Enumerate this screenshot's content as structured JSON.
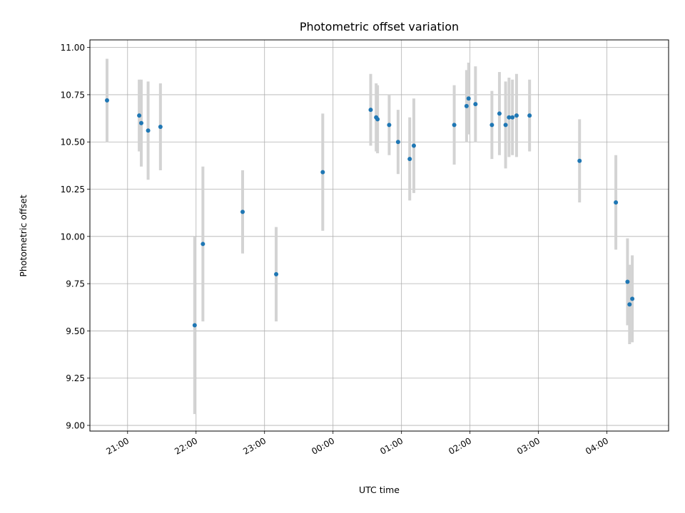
{
  "chart_data": {
    "type": "scatter",
    "title": "Photometric offset variation",
    "xlabel": "UTC time",
    "ylabel": "Photometric offset",
    "x_tick_labels": [
      "21:00",
      "22:00",
      "23:00",
      "00:00",
      "01:00",
      "02:00",
      "03:00",
      "04:00"
    ],
    "y_tick_labels": [
      "9.00",
      "9.25",
      "9.50",
      "9.75",
      "10.00",
      "10.25",
      "10.50",
      "10.75",
      "11.00"
    ],
    "x_axis_type": "time (UTC), x values in hours relative to 00:00 on the same night",
    "xlim": [
      -3.55,
      4.9
    ],
    "ylim": [
      8.97,
      11.04
    ],
    "grid": true,
    "marker_color": "#1f77b4",
    "errorbar_color": "#d3d3d3",
    "points": [
      {
        "x": -3.3,
        "y": 10.72,
        "err": 0.22
      },
      {
        "x": -2.83,
        "y": 10.64,
        "err": 0.19
      },
      {
        "x": -2.8,
        "y": 10.6,
        "err": 0.23
      },
      {
        "x": -2.7,
        "y": 10.56,
        "err": 0.26
      },
      {
        "x": -2.52,
        "y": 10.58,
        "err": 0.23
      },
      {
        "x": -2.02,
        "y": 9.53,
        "err": 0.47
      },
      {
        "x": -1.9,
        "y": 9.96,
        "err": 0.41
      },
      {
        "x": -1.32,
        "y": 10.13,
        "err": 0.22
      },
      {
        "x": -0.83,
        "y": 9.8,
        "err": 0.25
      },
      {
        "x": -0.15,
        "y": 10.34,
        "err": 0.31
      },
      {
        "x": 0.55,
        "y": 10.67,
        "err": 0.19
      },
      {
        "x": 0.63,
        "y": 10.63,
        "err": 0.18
      },
      {
        "x": 0.65,
        "y": 10.62,
        "err": 0.18
      },
      {
        "x": 0.82,
        "y": 10.59,
        "err": 0.16
      },
      {
        "x": 0.95,
        "y": 10.5,
        "err": 0.17
      },
      {
        "x": 1.12,
        "y": 10.41,
        "err": 0.22
      },
      {
        "x": 1.18,
        "y": 10.48,
        "err": 0.25
      },
      {
        "x": 1.77,
        "y": 10.59,
        "err": 0.21
      },
      {
        "x": 1.95,
        "y": 10.69,
        "err": 0.19
      },
      {
        "x": 1.98,
        "y": 10.73,
        "err": 0.19
      },
      {
        "x": 2.08,
        "y": 10.7,
        "err": 0.2
      },
      {
        "x": 2.32,
        "y": 10.59,
        "err": 0.18
      },
      {
        "x": 2.43,
        "y": 10.65,
        "err": 0.22
      },
      {
        "x": 2.52,
        "y": 10.59,
        "err": 0.23
      },
      {
        "x": 2.57,
        "y": 10.63,
        "err": 0.21
      },
      {
        "x": 2.62,
        "y": 10.63,
        "err": 0.2
      },
      {
        "x": 2.68,
        "y": 10.64,
        "err": 0.22
      },
      {
        "x": 2.87,
        "y": 10.64,
        "err": 0.19
      },
      {
        "x": 3.6,
        "y": 10.4,
        "err": 0.22
      },
      {
        "x": 4.13,
        "y": 10.18,
        "err": 0.25
      },
      {
        "x": 4.3,
        "y": 9.76,
        "err": 0.23
      },
      {
        "x": 4.33,
        "y": 9.64,
        "err": 0.21
      },
      {
        "x": 4.37,
        "y": 9.67,
        "err": 0.23
      }
    ]
  }
}
